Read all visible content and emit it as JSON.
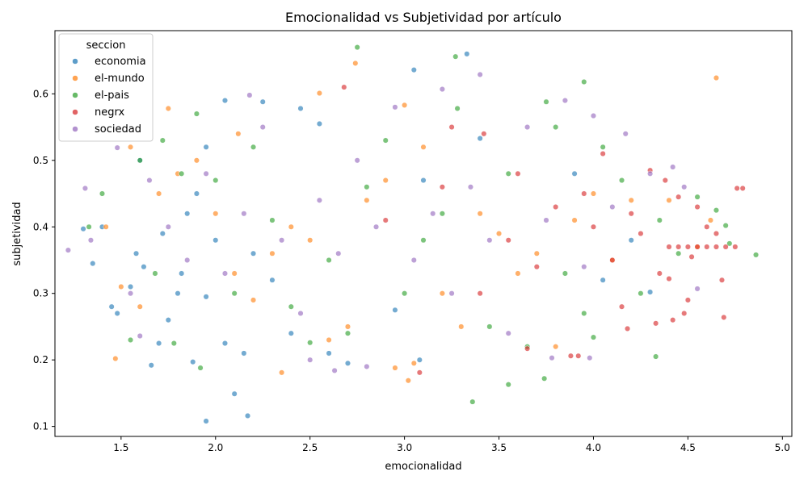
{
  "chart_data": {
    "type": "scatter",
    "title": "Emocionalidad vs Subjetividad por artículo",
    "xlabel": "emocionalidad",
    "ylabel": "subjetividad",
    "xlim": [
      1.15,
      5.05
    ],
    "ylim": [
      0.085,
      0.695
    ],
    "xticks": [
      1.5,
      2.0,
      2.5,
      3.0,
      3.5,
      4.0,
      4.5,
      5.0
    ],
    "yticks": [
      0.1,
      0.2,
      0.3,
      0.4,
      0.5,
      0.6
    ],
    "legend": {
      "title": "seccion",
      "placement": "top-left"
    },
    "grid": false,
    "series": [
      {
        "name": "economia",
        "color": "#1f77b4",
        "points": [
          [
            1.95,
            0.108
          ],
          [
            2.1,
            0.149
          ],
          [
            2.17,
            0.116
          ],
          [
            1.88,
            0.197
          ],
          [
            2.45,
            0.578
          ],
          [
            2.05,
            0.59
          ],
          [
            3.05,
            0.636
          ],
          [
            3.33,
            0.66
          ],
          [
            2.55,
            0.555
          ],
          [
            2.25,
            0.588
          ],
          [
            1.3,
            0.397
          ],
          [
            1.35,
            0.345
          ],
          [
            1.4,
            0.4
          ],
          [
            1.45,
            0.28
          ],
          [
            1.48,
            0.27
          ],
          [
            1.55,
            0.31
          ],
          [
            1.6,
            0.5
          ],
          [
            1.62,
            0.34
          ],
          [
            1.66,
            0.192
          ],
          [
            1.7,
            0.225
          ],
          [
            1.75,
            0.26
          ],
          [
            1.8,
            0.3
          ],
          [
            1.85,
            0.42
          ],
          [
            1.9,
            0.45
          ],
          [
            1.95,
            0.52
          ],
          [
            2.0,
            0.38
          ],
          [
            2.05,
            0.225
          ],
          [
            2.15,
            0.21
          ],
          [
            2.2,
            0.36
          ],
          [
            2.3,
            0.32
          ],
          [
            2.4,
            0.24
          ],
          [
            2.6,
            0.21
          ],
          [
            2.7,
            0.195
          ],
          [
            2.95,
            0.275
          ],
          [
            3.08,
            0.2
          ],
          [
            3.1,
            0.47
          ],
          [
            3.4,
            0.533
          ],
          [
            3.9,
            0.48
          ],
          [
            4.05,
            0.32
          ],
          [
            4.2,
            0.38
          ],
          [
            4.3,
            0.302
          ],
          [
            1.58,
            0.36
          ],
          [
            1.72,
            0.39
          ],
          [
            1.82,
            0.33
          ],
          [
            1.95,
            0.295
          ]
        ]
      },
      {
        "name": "el-mundo",
        "color": "#ff7f0e",
        "points": [
          [
            2.74,
            0.646
          ],
          [
            4.65,
            0.624
          ],
          [
            2.55,
            0.601
          ],
          [
            1.75,
            0.578
          ],
          [
            3.0,
            0.583
          ],
          [
            1.47,
            0.202
          ],
          [
            2.35,
            0.181
          ],
          [
            3.02,
            0.169
          ],
          [
            2.95,
            0.188
          ],
          [
            3.05,
            0.195
          ],
          [
            1.5,
            0.31
          ],
          [
            1.6,
            0.28
          ],
          [
            1.7,
            0.45
          ],
          [
            1.8,
            0.48
          ],
          [
            1.9,
            0.5
          ],
          [
            2.0,
            0.42
          ],
          [
            2.1,
            0.33
          ],
          [
            2.2,
            0.29
          ],
          [
            2.3,
            0.36
          ],
          [
            2.4,
            0.4
          ],
          [
            2.5,
            0.38
          ],
          [
            2.6,
            0.23
          ],
          [
            2.7,
            0.25
          ],
          [
            2.8,
            0.44
          ],
          [
            2.9,
            0.47
          ],
          [
            3.1,
            0.52
          ],
          [
            3.2,
            0.3
          ],
          [
            3.3,
            0.25
          ],
          [
            3.4,
            0.42
          ],
          [
            3.5,
            0.39
          ],
          [
            3.6,
            0.33
          ],
          [
            3.7,
            0.36
          ],
          [
            3.8,
            0.22
          ],
          [
            3.9,
            0.41
          ],
          [
            4.0,
            0.45
          ],
          [
            4.1,
            0.35
          ],
          [
            4.2,
            0.44
          ],
          [
            4.4,
            0.44
          ],
          [
            4.55,
            0.37
          ],
          [
            4.62,
            0.41
          ],
          [
            1.55,
            0.52
          ],
          [
            1.42,
            0.4
          ],
          [
            2.12,
            0.54
          ]
        ]
      },
      {
        "name": "el-pais",
        "color": "#2ca02c",
        "points": [
          [
            2.75,
            0.67
          ],
          [
            3.27,
            0.656
          ],
          [
            3.95,
            0.618
          ],
          [
            3.36,
            0.137
          ],
          [
            3.55,
            0.163
          ],
          [
            3.74,
            0.172
          ],
          [
            4.33,
            0.205
          ],
          [
            4.86,
            0.358
          ],
          [
            4.72,
            0.375
          ],
          [
            1.33,
            0.4
          ],
          [
            1.92,
            0.188
          ],
          [
            1.4,
            0.45
          ],
          [
            1.55,
            0.23
          ],
          [
            1.6,
            0.5
          ],
          [
            1.72,
            0.53
          ],
          [
            1.82,
            0.48
          ],
          [
            1.9,
            0.57
          ],
          [
            2.0,
            0.47
          ],
          [
            2.1,
            0.3
          ],
          [
            2.2,
            0.52
          ],
          [
            2.3,
            0.41
          ],
          [
            2.4,
            0.28
          ],
          [
            2.5,
            0.226
          ],
          [
            2.6,
            0.35
          ],
          [
            2.7,
            0.24
          ],
          [
            2.8,
            0.46
          ],
          [
            2.9,
            0.53
          ],
          [
            3.0,
            0.3
          ],
          [
            3.1,
            0.38
          ],
          [
            3.2,
            0.42
          ],
          [
            3.28,
            0.578
          ],
          [
            3.45,
            0.25
          ],
          [
            3.55,
            0.48
          ],
          [
            3.65,
            0.22
          ],
          [
            3.75,
            0.588
          ],
          [
            3.85,
            0.33
          ],
          [
            3.95,
            0.27
          ],
          [
            4.05,
            0.52
          ],
          [
            4.15,
            0.47
          ],
          [
            4.25,
            0.3
          ],
          [
            4.35,
            0.41
          ],
          [
            4.45,
            0.36
          ],
          [
            4.55,
            0.445
          ],
          [
            4.65,
            0.425
          ],
          [
            4.7,
            0.402
          ],
          [
            4.0,
            0.234
          ],
          [
            1.68,
            0.33
          ],
          [
            1.78,
            0.225
          ],
          [
            3.8,
            0.55
          ]
        ]
      },
      {
        "name": "negrx",
        "color": "#d62728",
        "points": [
          [
            2.68,
            0.61
          ],
          [
            3.08,
            0.181
          ],
          [
            3.25,
            0.55
          ],
          [
            3.42,
            0.54
          ],
          [
            3.55,
            0.38
          ],
          [
            3.65,
            0.217
          ],
          [
            3.7,
            0.34
          ],
          [
            3.8,
            0.43
          ],
          [
            3.88,
            0.206
          ],
          [
            3.92,
            0.206
          ],
          [
            3.95,
            0.45
          ],
          [
            4.0,
            0.4
          ],
          [
            4.05,
            0.51
          ],
          [
            4.1,
            0.35
          ],
          [
            4.15,
            0.28
          ],
          [
            4.18,
            0.247
          ],
          [
            4.2,
            0.42
          ],
          [
            4.25,
            0.39
          ],
          [
            4.3,
            0.485
          ],
          [
            4.33,
            0.255
          ],
          [
            4.35,
            0.33
          ],
          [
            4.38,
            0.47
          ],
          [
            4.4,
            0.322
          ],
          [
            4.42,
            0.26
          ],
          [
            4.45,
            0.445
          ],
          [
            4.48,
            0.27
          ],
          [
            4.5,
            0.29
          ],
          [
            4.52,
            0.355
          ],
          [
            4.55,
            0.43
          ],
          [
            4.6,
            0.4
          ],
          [
            4.65,
            0.39
          ],
          [
            4.68,
            0.32
          ],
          [
            4.69,
            0.264
          ],
          [
            4.79,
            0.458
          ],
          [
            4.76,
            0.458
          ],
          [
            4.4,
            0.37
          ],
          [
            4.45,
            0.37
          ],
          [
            4.5,
            0.37
          ],
          [
            4.55,
            0.37
          ],
          [
            4.6,
            0.37
          ],
          [
            4.65,
            0.37
          ],
          [
            4.7,
            0.37
          ],
          [
            4.75,
            0.37
          ],
          [
            3.2,
            0.46
          ],
          [
            3.4,
            0.3
          ],
          [
            2.9,
            0.41
          ],
          [
            3.6,
            0.48
          ]
        ]
      },
      {
        "name": "sociedad",
        "color": "#9467bd",
        "points": [
          [
            1.22,
            0.365
          ],
          [
            1.31,
            0.458
          ],
          [
            1.34,
            0.38
          ],
          [
            3.4,
            0.629
          ],
          [
            3.2,
            0.607
          ],
          [
            2.18,
            0.598
          ],
          [
            2.63,
            0.184
          ],
          [
            2.8,
            0.19
          ],
          [
            3.78,
            0.203
          ],
          [
            3.98,
            0.203
          ],
          [
            1.48,
            0.519
          ],
          [
            1.55,
            0.3
          ],
          [
            1.65,
            0.47
          ],
          [
            1.75,
            0.4
          ],
          [
            1.85,
            0.35
          ],
          [
            1.95,
            0.48
          ],
          [
            2.05,
            0.33
          ],
          [
            2.15,
            0.42
          ],
          [
            2.25,
            0.55
          ],
          [
            2.35,
            0.38
          ],
          [
            2.45,
            0.27
          ],
          [
            2.55,
            0.44
          ],
          [
            2.65,
            0.36
          ],
          [
            2.75,
            0.5
          ],
          [
            2.85,
            0.4
          ],
          [
            2.95,
            0.58
          ],
          [
            3.05,
            0.35
          ],
          [
            3.15,
            0.42
          ],
          [
            3.25,
            0.3
          ],
          [
            3.35,
            0.46
          ],
          [
            3.45,
            0.38
          ],
          [
            3.55,
            0.24
          ],
          [
            3.65,
            0.55
          ],
          [
            3.75,
            0.41
          ],
          [
            3.85,
            0.59
          ],
          [
            3.95,
            0.34
          ],
          [
            4.0,
            0.567
          ],
          [
            4.1,
            0.43
          ],
          [
            4.17,
            0.54
          ],
          [
            4.3,
            0.48
          ],
          [
            4.42,
            0.49
          ],
          [
            4.55,
            0.307
          ],
          [
            4.48,
            0.46
          ],
          [
            2.5,
            0.2
          ],
          [
            1.6,
            0.236
          ]
        ]
      }
    ]
  }
}
